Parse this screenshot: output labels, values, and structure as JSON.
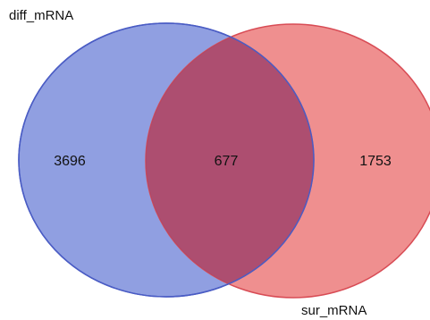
{
  "sets": [
    {
      "name": "diff_mRNA",
      "color": "#6b7fd7",
      "stroke": "#4a5cc4"
    },
    {
      "name": "sur_mRNA",
      "color": "#ea6a6a",
      "stroke": "#d84c55"
    }
  ],
  "regions": {
    "left_only": "3696",
    "intersection": "677",
    "right_only": "1753"
  },
  "overlap_color": "#a6466c"
}
